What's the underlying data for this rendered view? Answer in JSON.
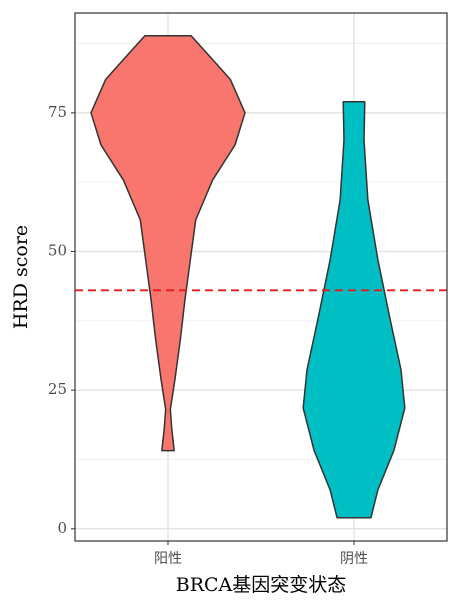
{
  "chart_data": {
    "type": "violin",
    "x_label": "BRCA基因突变状态",
    "y_label": "HRD score",
    "categories": [
      "阳性",
      "阴性"
    ],
    "series": [
      {
        "name": "阳性",
        "color": "#f8766d",
        "min": 14.1,
        "max": 88.9,
        "profile": {
          "y": [
            88.9,
            84.6,
            81,
            75,
            69.2,
            62.9,
            55.7,
            48.5,
            41.3,
            34.1,
            26.9,
            21.5,
            17.9,
            14.1
          ],
          "density": [
            0.3,
            0.58,
            0.81,
            1,
            0.87,
            0.58,
            0.36,
            0.29,
            0.22,
            0.16,
            0.09,
            0.03,
            0.05,
            0.08
          ]
        }
      },
      {
        "name": "阴性",
        "color": "#00bfc4",
        "min": 2,
        "max": 77,
        "profile": {
          "y": [
            77,
            70.1,
            59.3,
            48.5,
            37.7,
            28.7,
            21.8,
            14.2,
            7,
            2
          ],
          "density": [
            0.14,
            0.13,
            0.18,
            0.31,
            0.47,
            0.61,
            0.66,
            0.52,
            0.31,
            0.22
          ]
        }
      }
    ],
    "reference_line": {
      "value": 43,
      "color": "#e41a1c"
    },
    "ylim": [
      -2.2,
      93
    ],
    "yticks": [
      0,
      25,
      50,
      75
    ],
    "minor_yticks": [
      12.5,
      37.5,
      62.5,
      87.5
    ],
    "grid": true
  }
}
